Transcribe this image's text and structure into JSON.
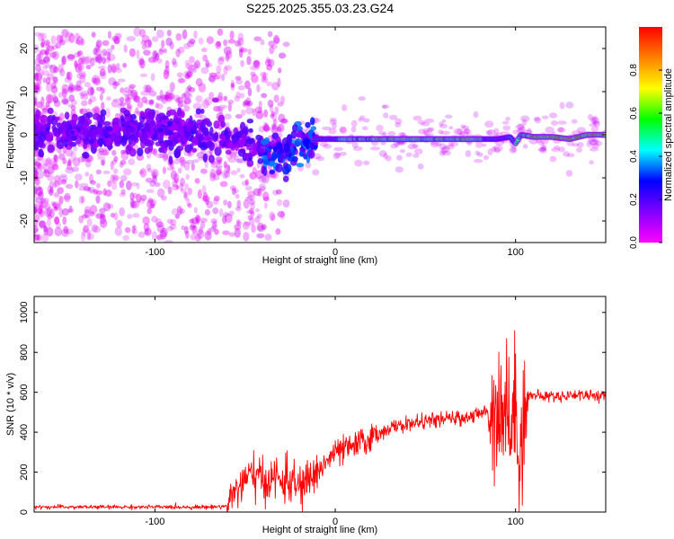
{
  "figure": {
    "title": "S225.2025.355.03.23.G24"
  },
  "chart_data": [
    {
      "type": "heatmap",
      "xlabel": "Height of straight line (km)",
      "ylabel": "Frequency (Hz)",
      "xlim": [
        -167,
        150
      ],
      "ylim": [
        -25,
        25
      ],
      "x_ticks": [
        -100,
        0,
        100
      ],
      "y_ticks": [
        -20,
        -10,
        0,
        10,
        20
      ],
      "colorbar": {
        "label": "Normalized spectral amplitude",
        "range": [
          0,
          1
        ],
        "ticks": [
          "0.0",
          "0.2",
          "0.4",
          "0.6",
          "0.8"
        ],
        "colormap": [
          "#ff00ff",
          "#8000ff",
          "#0000ff",
          "#00ffff",
          "#00ff00",
          "#ffff00",
          "#ff8000",
          "#ff0000"
        ]
      },
      "ridge": {
        "x": [
          -167,
          -140,
          -110,
          -80,
          -60,
          -45,
          -38,
          -30,
          -20,
          -10,
          0,
          10,
          30,
          50,
          70,
          82,
          90,
          97,
          100,
          103,
          110,
          120,
          130,
          140,
          150
        ],
        "y": [
          0.5,
          0.8,
          0.3,
          0.2,
          -0.5,
          -2,
          -5,
          -4,
          -2,
          -1,
          -1,
          -1,
          -1,
          -1,
          -1,
          -1,
          -1,
          -0.5,
          -2,
          0,
          -0.5,
          -0.5,
          -1,
          0,
          0
        ]
      },
      "grid": false,
      "legend": "none"
    },
    {
      "type": "line",
      "xlabel": "Height of straight line (km)",
      "ylabel": "SNR (10 * v/v)",
      "xlim": [
        -167,
        150
      ],
      "ylim": [
        0,
        1080
      ],
      "x_ticks": [
        -100,
        0,
        100
      ],
      "y_ticks": [
        0,
        200,
        400,
        600,
        800,
        1000
      ],
      "series": [
        {
          "color": "#ff0000",
          "x": [
            -167,
            -150,
            -130,
            -110,
            -90,
            -70,
            -60,
            -55,
            -50,
            -45,
            -40,
            -35,
            -30,
            -25,
            -20,
            -15,
            -10,
            -5,
            0,
            5,
            10,
            15,
            20,
            25,
            30,
            35,
            40,
            50,
            60,
            70,
            80,
            85,
            90,
            95,
            98,
            100,
            102,
            104,
            105,
            108,
            115,
            125,
            135,
            150
          ],
          "y": [
            25,
            25,
            25,
            25,
            25,
            25,
            30,
            120,
            150,
            200,
            140,
            180,
            150,
            160,
            120,
            160,
            200,
            250,
            300,
            310,
            330,
            350,
            370,
            400,
            420,
            430,
            440,
            455,
            465,
            470,
            490,
            510,
            530,
            540,
            400,
            560,
            350,
            330,
            580,
            585,
            580,
            580,
            590,
            580
          ]
        }
      ],
      "grid": false,
      "legend": "none"
    }
  ]
}
